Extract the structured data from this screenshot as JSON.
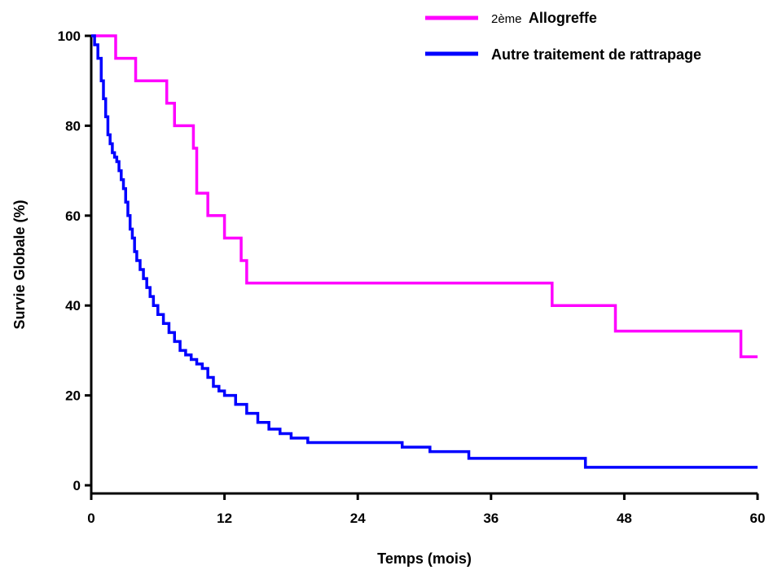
{
  "chart_data": {
    "type": "line",
    "step": true,
    "xlabel": "Temps (mois)",
    "ylabel": "Survie Globale (%)",
    "xlim": [
      0,
      60
    ],
    "ylim": [
      0,
      100
    ],
    "xticks": [
      0,
      12,
      24,
      36,
      48,
      60
    ],
    "yticks": [
      0,
      20,
      40,
      60,
      80,
      100
    ],
    "grid": false,
    "legend_position": "top-right",
    "series": [
      {
        "name_prefix": "2ème",
        "name_main": "Allogreffe",
        "color": "#ff00ff",
        "x": [
          0,
          2.2,
          4,
          6.8,
          7.5,
          9.2,
          9.5,
          10.5,
          12,
          13.5,
          14,
          41.5,
          47.2,
          58.5,
          60
        ],
        "y": [
          100,
          95,
          90,
          85,
          80,
          75,
          65,
          60,
          55,
          50,
          45,
          40,
          34.3,
          28.6,
          28.6
        ]
      },
      {
        "name": "Autre traitement de rattrapage",
        "color": "#0000ff",
        "x": [
          0,
          0.3,
          0.6,
          0.9,
          1.1,
          1.3,
          1.5,
          1.7,
          1.9,
          2.1,
          2.3,
          2.5,
          2.7,
          2.9,
          3.1,
          3.3,
          3.5,
          3.7,
          3.9,
          4.1,
          4.4,
          4.7,
          5.0,
          5.3,
          5.6,
          6.0,
          6.5,
          7.0,
          7.5,
          8.0,
          8.5,
          9.0,
          9.5,
          10.0,
          10.5,
          11.0,
          11.5,
          12.0,
          13.0,
          14.0,
          15.0,
          16.0,
          17.0,
          18.0,
          19.5,
          28.0,
          30.5,
          34.0,
          44.5,
          60.0
        ],
        "y": [
          100,
          98,
          95,
          90,
          86,
          82,
          78,
          76,
          74,
          73,
          72,
          70,
          68,
          66,
          63,
          60,
          57,
          55,
          52,
          50,
          48,
          46,
          44,
          42,
          40,
          38,
          36,
          34,
          32,
          30,
          29,
          28,
          27,
          26,
          24,
          22,
          21,
          20,
          18,
          16,
          14,
          12.5,
          11.5,
          10.5,
          9.5,
          8.5,
          7.5,
          6.0,
          4.0,
          4.0
        ]
      }
    ]
  }
}
